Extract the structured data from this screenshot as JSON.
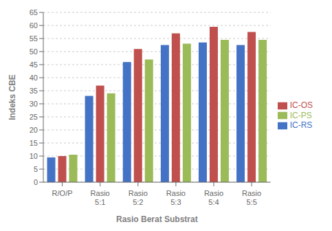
{
  "chart_data": {
    "type": "bar",
    "categories": [
      "R/O/P",
      "Rasio\n5:1",
      "Rasio\n5:2",
      "Rasio\n5:3",
      "Rasio\n5:4",
      "Rasio\n5:5"
    ],
    "series": [
      {
        "name": "IC-RS",
        "color": "#4472C4",
        "values": [
          9.5,
          33.0,
          46.0,
          52.5,
          53.5,
          52.5
        ]
      },
      {
        "name": "IC-OS",
        "color": "#C0504D",
        "values": [
          10.0,
          37.0,
          51.0,
          57.0,
          59.5,
          57.5
        ]
      },
      {
        "name": "IC-PS",
        "color": "#9BBB59",
        "values": [
          10.5,
          34.0,
          47.0,
          53.0,
          54.5,
          54.5
        ]
      }
    ],
    "xlabel": "Rasio Berat Substrat",
    "ylabel": "Indeks CBE",
    "ylim": [
      0,
      65
    ],
    "yticks": [
      0,
      5,
      10,
      15,
      20,
      25,
      30,
      35,
      40,
      45,
      50,
      55,
      60,
      65
    ],
    "grid": true,
    "legend": "right"
  }
}
